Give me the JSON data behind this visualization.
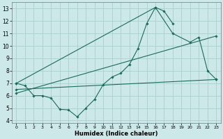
{
  "xlabel": "Humidex (Indice chaleur)",
  "bg_color": "#cce8e8",
  "grid_color": "#aacfcf",
  "line_color": "#1a6b5a",
  "xlim": [
    -0.5,
    23.5
  ],
  "ylim": [
    3.8,
    13.5
  ],
  "xticks": [
    0,
    1,
    2,
    3,
    4,
    5,
    6,
    7,
    8,
    9,
    10,
    11,
    12,
    13,
    14,
    15,
    16,
    17,
    18,
    19,
    20,
    21,
    22,
    23
  ],
  "yticks": [
    4,
    5,
    6,
    7,
    8,
    9,
    10,
    11,
    12,
    13
  ],
  "line1_x": [
    0,
    1,
    2,
    3,
    4,
    5,
    6,
    7,
    8,
    9,
    10,
    11,
    12,
    13,
    14,
    15,
    16,
    17,
    18
  ],
  "line1_y": [
    7.0,
    6.8,
    6.0,
    6.0,
    5.8,
    4.9,
    4.85,
    4.3,
    5.0,
    5.7,
    6.9,
    7.5,
    7.8,
    8.5,
    9.8,
    11.8,
    13.1,
    12.8,
    11.8
  ],
  "line2_x": [
    0,
    16,
    18,
    20,
    21,
    22,
    23
  ],
  "line2_y": [
    7.0,
    13.1,
    11.0,
    10.3,
    10.7,
    8.0,
    7.3
  ],
  "line3_x": [
    0,
    23
  ],
  "line3_y": [
    6.5,
    7.3
  ],
  "line4_x": [
    0,
    23
  ],
  "line4_y": [
    6.2,
    10.8
  ]
}
